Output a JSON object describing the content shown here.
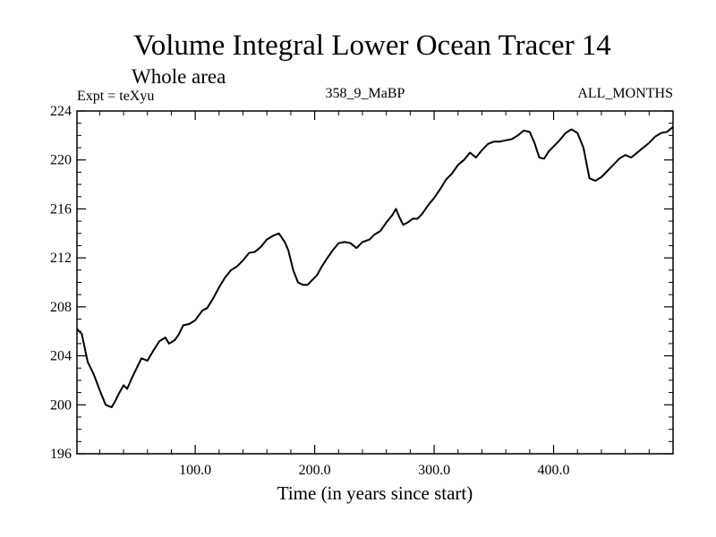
{
  "chart_data": {
    "type": "line",
    "title": "Volume Integral Lower Ocean Tracer 14",
    "subtitle": "Whole area",
    "expt_label": "Expt = teXyu",
    "run_label": "358_9_MaBP",
    "period_label": "ALL_MONTHS",
    "xlabel": "Time (in years since start)",
    "ylabel": "",
    "xlim": [
      1,
      500
    ],
    "ylim": [
      196,
      224
    ],
    "x_ticks": [
      100,
      200,
      300,
      400
    ],
    "x_tick_labels": [
      "100.0",
      "200.0",
      "300.0",
      "400.0"
    ],
    "y_ticks": [
      196,
      200,
      204,
      208,
      212,
      216,
      220,
      224
    ],
    "y_tick_labels": [
      "196",
      "200",
      "204",
      "208",
      "212",
      "216",
      "220",
      "224"
    ],
    "grid": false,
    "color": "#000000",
    "series": [
      {
        "x": [
          1,
          5,
          10,
          15,
          20,
          25,
          30,
          33,
          36,
          40,
          43,
          47,
          50,
          55,
          60,
          63,
          66,
          70,
          75,
          78,
          80,
          83,
          86,
          90,
          95,
          100,
          103,
          106,
          110,
          115,
          120,
          125,
          130,
          135,
          140,
          145,
          150,
          155,
          160,
          165,
          170,
          175,
          178,
          182,
          186,
          190,
          194,
          198,
          202,
          206,
          210,
          215,
          220,
          225,
          230,
          235,
          240,
          243,
          246,
          250,
          255,
          260,
          265,
          268,
          271,
          274,
          278,
          282,
          286,
          290,
          295,
          300,
          305,
          310,
          315,
          320,
          325,
          330,
          335,
          340,
          345,
          350,
          355,
          360,
          365,
          370,
          375,
          380,
          384,
          388,
          392,
          396,
          400,
          405,
          410,
          415,
          420,
          425,
          430,
          435,
          440,
          445,
          450,
          455,
          460,
          465,
          470,
          475,
          480,
          485,
          490,
          495,
          500
        ],
        "values": [
          206.2,
          205.8,
          203.5,
          202.5,
          201.2,
          200.0,
          199.8,
          200.3,
          200.9,
          201.6,
          201.3,
          202.2,
          202.8,
          203.8,
          203.6,
          204.1,
          204.6,
          205.2,
          205.5,
          205.0,
          205.1,
          205.3,
          205.7,
          206.5,
          206.6,
          206.9,
          207.3,
          207.7,
          207.9,
          208.7,
          209.6,
          210.4,
          211.0,
          211.3,
          211.8,
          212.4,
          212.5,
          212.9,
          213.5,
          213.8,
          214.0,
          213.3,
          212.6,
          211.0,
          210.0,
          209.8,
          209.8,
          210.2,
          210.6,
          211.3,
          211.9,
          212.6,
          213.2,
          213.3,
          213.2,
          212.8,
          213.3,
          213.4,
          213.5,
          213.9,
          214.2,
          214.9,
          215.5,
          216.0,
          215.3,
          214.7,
          214.9,
          215.2,
          215.2,
          215.6,
          216.3,
          216.9,
          217.6,
          218.4,
          218.9,
          219.6,
          220.0,
          220.6,
          220.2,
          220.8,
          221.3,
          221.5,
          221.5,
          221.6,
          221.7,
          222.0,
          222.4,
          222.3,
          221.4,
          220.2,
          220.1,
          220.7,
          221.1,
          221.6,
          222.2,
          222.5,
          222.2,
          221.0,
          218.5,
          218.3,
          218.6,
          219.1,
          219.6,
          220.1,
          220.4,
          220.2,
          220.6,
          221.0,
          221.4,
          221.9,
          222.2,
          222.3,
          222.7
        ]
      }
    ]
  }
}
